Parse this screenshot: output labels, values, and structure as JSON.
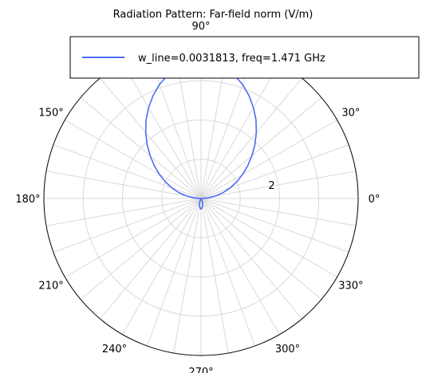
{
  "chart_data": {
    "type": "polar-line",
    "title": "Radiation Pattern: Far-field norm (V/m)",
    "angle_unit": "degrees",
    "angle_ticks": [
      0,
      30,
      60,
      90,
      120,
      150,
      180,
      210,
      240,
      270,
      300,
      330
    ],
    "angle_tick_labels": {
      "0": "0°",
      "30": "30°",
      "90": "90°",
      "150": "150°",
      "180": "180°",
      "210": "210°",
      "240": "240°",
      "270": "270°",
      "300": "300°",
      "330": "330°"
    },
    "radial_range": [
      0,
      4
    ],
    "radial_gridlines": [
      1,
      2,
      3,
      4
    ],
    "radial_tick_labels": [
      {
        "value": 2,
        "label": "2"
      }
    ],
    "grid": true,
    "legend": {
      "placement": "top-right",
      "entries": [
        "w_line=0.0031813, freq=1.471 GHz"
      ]
    },
    "series": [
      {
        "name": "w_line=0.0031813, freq=1.471 GHz",
        "color": "#4a6cf7",
        "theta": [
          0,
          5,
          10,
          15,
          20,
          25,
          30,
          35,
          40,
          45,
          50,
          55,
          60,
          65,
          70,
          75,
          80,
          85,
          90,
          95,
          100,
          105,
          110,
          115,
          120,
          125,
          130,
          135,
          140,
          145,
          150,
          155,
          160,
          165,
          170,
          175,
          180,
          185,
          190,
          195,
          200,
          205,
          210,
          215,
          220,
          225,
          230,
          235,
          240,
          245,
          250,
          255,
          260,
          265,
          270,
          275,
          280,
          285,
          290,
          295,
          300,
          305,
          310,
          315,
          320,
          325,
          330,
          335,
          340,
          345,
          350,
          355
        ],
        "r": [
          0.03,
          0.19,
          0.39,
          0.59,
          0.79,
          1.0,
          1.22,
          1.45,
          1.69,
          1.94,
          2.19,
          2.44,
          2.67,
          2.89,
          3.09,
          3.26,
          3.39,
          3.48,
          3.52,
          3.48,
          3.39,
          3.26,
          3.09,
          2.89,
          2.67,
          2.44,
          2.19,
          1.94,
          1.69,
          1.45,
          1.22,
          1.0,
          0.79,
          0.59,
          0.39,
          0.19,
          0.03,
          0.0,
          0.0,
          0.0,
          0.0,
          0.0,
          0.0,
          0.0,
          0.0,
          0.0,
          0.0,
          0.0,
          0.01,
          0.04,
          0.1,
          0.16,
          0.21,
          0.25,
          0.27,
          0.25,
          0.21,
          0.16,
          0.1,
          0.04,
          0.01,
          0.0,
          0.0,
          0.0,
          0.0,
          0.0,
          0.0,
          0.0,
          0.0,
          0.0,
          0.0,
          0.0
        ]
      }
    ]
  }
}
